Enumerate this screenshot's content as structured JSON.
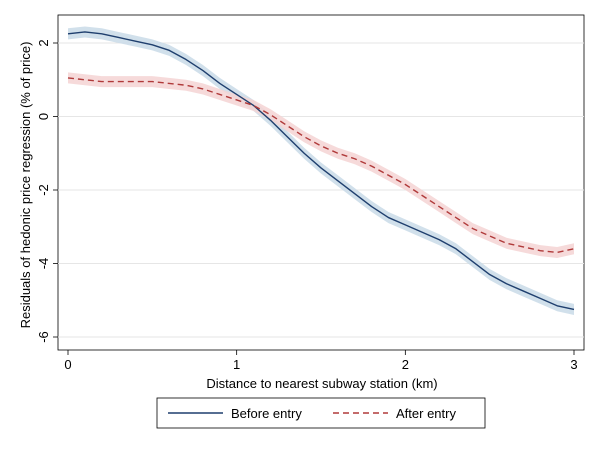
{
  "chart_data": {
    "type": "line",
    "title": "",
    "xlabel": "Distance to nearest subway station (km)",
    "ylabel": "Residuals of hedonic price regression (% of price)",
    "xlim": [
      0,
      3
    ],
    "ylim": [
      -6,
      2.5
    ],
    "xticks": [
      0,
      1,
      2,
      3
    ],
    "yticks": [
      -6,
      -4,
      -2,
      0,
      2
    ],
    "grid": "horizontal",
    "legend_position": "bottom",
    "series": [
      {
        "name": "Before entry",
        "color": "#1f3f6e",
        "band_color": "#c9dbe8",
        "line_style": "solid",
        "x": [
          0,
          0.1,
          0.2,
          0.3,
          0.4,
          0.5,
          0.6,
          0.7,
          0.8,
          0.9,
          1.0,
          1.1,
          1.2,
          1.3,
          1.4,
          1.5,
          1.6,
          1.7,
          1.8,
          1.9,
          2.0,
          2.1,
          2.2,
          2.3,
          2.4,
          2.5,
          2.6,
          2.7,
          2.8,
          2.9,
          3.0
        ],
        "y": [
          2.25,
          2.3,
          2.25,
          2.15,
          2.05,
          1.95,
          1.8,
          1.55,
          1.25,
          0.9,
          0.6,
          0.3,
          -0.1,
          -0.55,
          -1.0,
          -1.4,
          -1.75,
          -2.1,
          -2.45,
          -2.75,
          -2.95,
          -3.15,
          -3.35,
          -3.6,
          -3.95,
          -4.3,
          -4.55,
          -4.75,
          -4.95,
          -5.15,
          -5.25
        ],
        "band": 0.15
      },
      {
        "name": "After entry",
        "color": "#b03a3a",
        "band_color": "#f5d3d3",
        "line_style": "dashed",
        "x": [
          0,
          0.1,
          0.2,
          0.3,
          0.4,
          0.5,
          0.6,
          0.7,
          0.8,
          0.9,
          1.0,
          1.1,
          1.2,
          1.3,
          1.4,
          1.5,
          1.6,
          1.7,
          1.8,
          1.9,
          2.0,
          2.1,
          2.2,
          2.3,
          2.4,
          2.5,
          2.6,
          2.7,
          2.8,
          2.9,
          3.0
        ],
        "y": [
          1.05,
          1.0,
          0.95,
          0.95,
          0.95,
          0.95,
          0.9,
          0.85,
          0.75,
          0.6,
          0.45,
          0.3,
          0.05,
          -0.25,
          -0.55,
          -0.8,
          -1.0,
          -1.15,
          -1.35,
          -1.6,
          -1.85,
          -2.15,
          -2.45,
          -2.75,
          -3.05,
          -3.25,
          -3.45,
          -3.55,
          -3.65,
          -3.7,
          -3.6
        ],
        "band": 0.15
      }
    ]
  }
}
